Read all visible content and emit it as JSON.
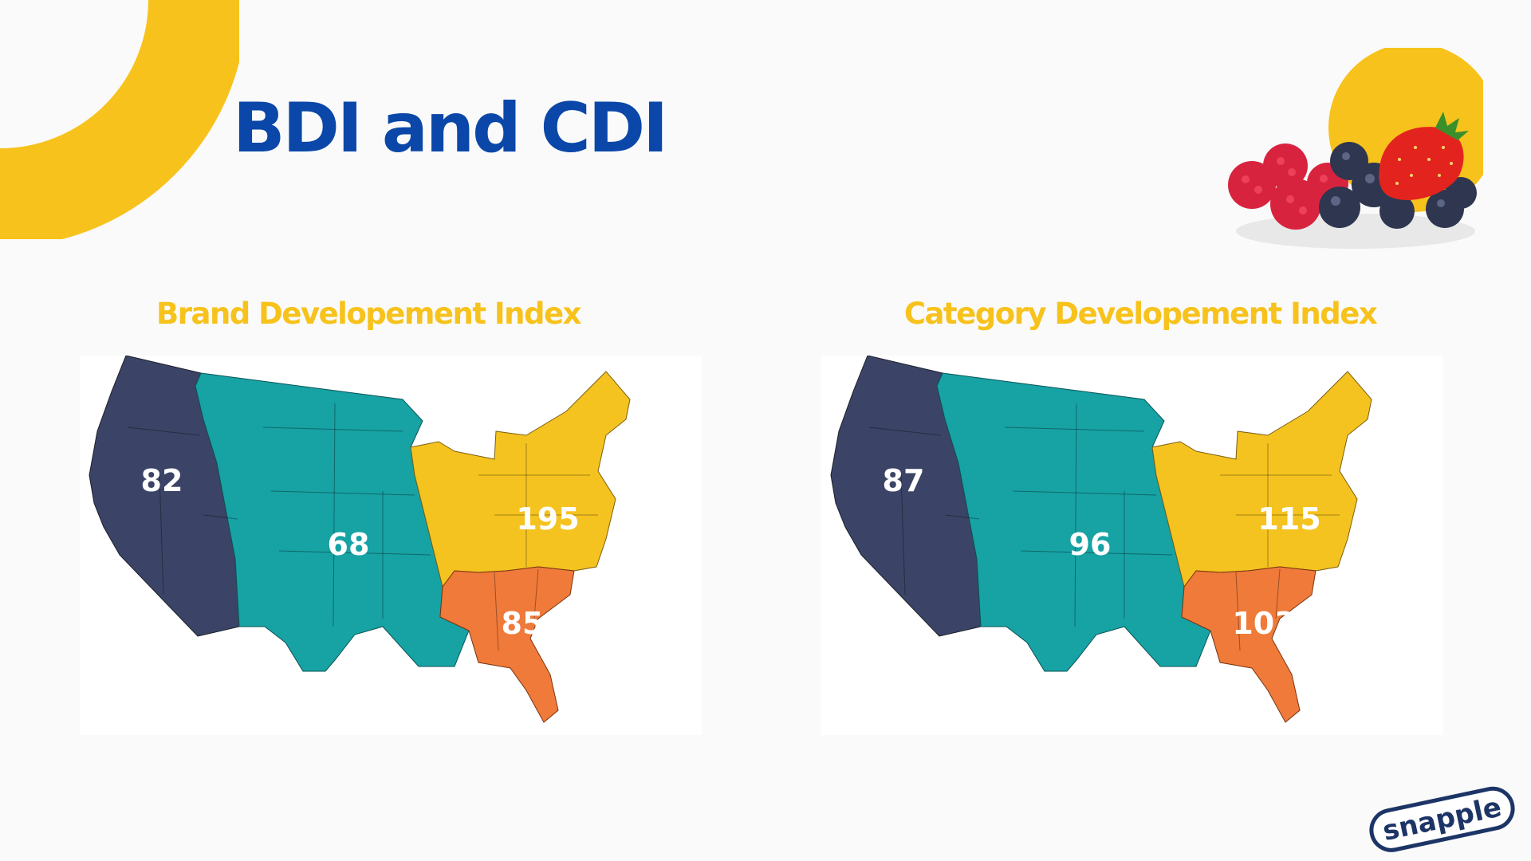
{
  "title": "BDI and CDI",
  "colors": {
    "accent_yellow": "#f7c21b",
    "title_blue": "#0a47a8",
    "west": "#3b4466",
    "central": "#17a2a4",
    "northeast": "#f5c320",
    "south": "#ef7a3a",
    "label": "#ffffff"
  },
  "maps": [
    {
      "title": "Brand Developement Index",
      "values": {
        "west": "82",
        "central": "68",
        "northeast": "195",
        "south": "85"
      }
    },
    {
      "title": "Category Developement Index",
      "values": {
        "west": "87",
        "central": "96",
        "northeast": "115",
        "south": "103"
      }
    }
  ],
  "logo": {
    "text": "snapple"
  },
  "icons": [
    "decorative-arc",
    "berries-image",
    "snapple-logo"
  ]
}
